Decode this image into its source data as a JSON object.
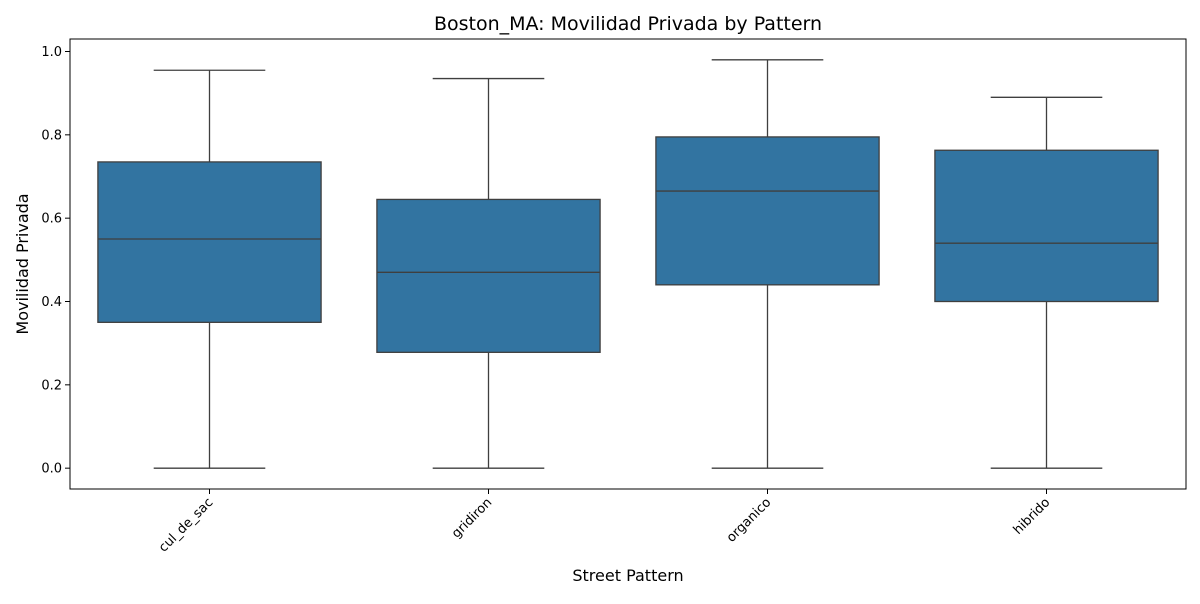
{
  "chart_data": {
    "type": "box",
    "title": "Boston_MA: Movilidad Privada by Pattern",
    "xlabel": "Street Pattern",
    "ylabel": "Movilidad Privada",
    "ylim": [
      -0.05,
      1.03
    ],
    "yticks": [
      "0.0",
      "0.2",
      "0.4",
      "0.6",
      "0.8",
      "1.0"
    ],
    "grid": false,
    "legend": "none",
    "box_color": "#3274a1",
    "line_color": "#3f3f3f",
    "categories": [
      "cul_de_sac",
      "gridiron",
      "organico",
      "hibrido"
    ],
    "boxes": [
      {
        "category": "cul_de_sac",
        "whisker_low": 0.0,
        "q1": 0.35,
        "median": 0.55,
        "q3": 0.735,
        "whisker_high": 0.955
      },
      {
        "category": "gridiron",
        "whisker_low": 0.0,
        "q1": 0.278,
        "median": 0.47,
        "q3": 0.645,
        "whisker_high": 0.935
      },
      {
        "category": "organico",
        "whisker_low": 0.0,
        "q1": 0.44,
        "median": 0.665,
        "q3": 0.795,
        "whisker_high": 0.98
      },
      {
        "category": "hibrido",
        "whisker_low": 0.0,
        "q1": 0.4,
        "median": 0.54,
        "q3": 0.763,
        "whisker_high": 0.89
      }
    ]
  }
}
